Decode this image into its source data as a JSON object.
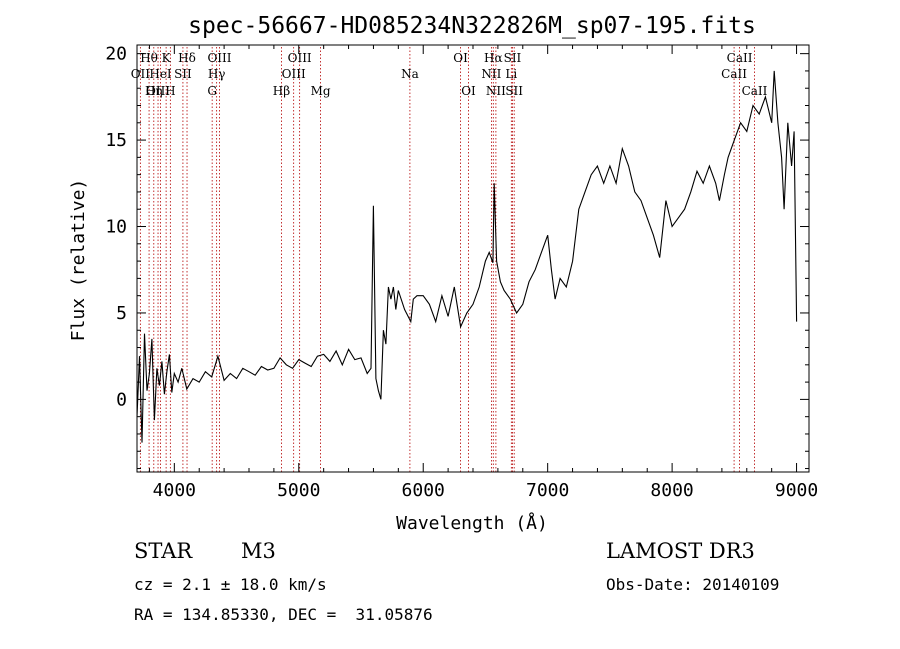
{
  "chart_data": {
    "type": "line",
    "title": "spec-56667-HD085234N322826M_sp07-195.fits",
    "xlabel": "Wavelength (Å)",
    "ylabel": "Flux (relative)",
    "xlim": [
      3700,
      9100
    ],
    "ylim": [
      -4.2,
      20.5
    ],
    "xticks": [
      4000,
      5000,
      6000,
      7000,
      8000,
      9000
    ],
    "yticks": [
      0,
      5,
      10,
      15,
      20
    ],
    "grid": false,
    "series": [
      {
        "color": "#000000",
        "x": [
          3700,
          3720,
          3740,
          3760,
          3780,
          3800,
          3820,
          3840,
          3860,
          3880,
          3900,
          3920,
          3940,
          3960,
          3980,
          4000,
          4030,
          4060,
          4100,
          4150,
          4200,
          4250,
          4300,
          4350,
          4400,
          4450,
          4500,
          4550,
          4600,
          4650,
          4700,
          4750,
          4800,
          4850,
          4900,
          4950,
          5000,
          5050,
          5100,
          5150,
          5200,
          5250,
          5300,
          5350,
          5400,
          5450,
          5500,
          5550,
          5580,
          5600,
          5620,
          5640,
          5660,
          5680,
          5700,
          5720,
          5740,
          5760,
          5780,
          5800,
          5850,
          5900,
          5920,
          5950,
          6000,
          6050,
          6100,
          6150,
          6200,
          6250,
          6300,
          6350,
          6400,
          6450,
          6500,
          6530,
          6560,
          6570,
          6590,
          6620,
          6650,
          6700,
          6750,
          6800,
          6850,
          6900,
          6950,
          7000,
          7030,
          7060,
          7100,
          7150,
          7200,
          7250,
          7300,
          7350,
          7400,
          7450,
          7500,
          7550,
          7600,
          7650,
          7700,
          7750,
          7800,
          7850,
          7900,
          7950,
          8000,
          8050,
          8100,
          8150,
          8200,
          8250,
          8300,
          8350,
          8380,
          8420,
          8450,
          8500,
          8550,
          8600,
          8650,
          8700,
          8750,
          8800,
          8820,
          8850,
          8880,
          8900,
          8930,
          8960,
          8980,
          9000
        ],
        "y": [
          -1.0,
          2.5,
          -2.5,
          3.8,
          0.5,
          1.5,
          3.5,
          -1.2,
          1.8,
          0.8,
          2.2,
          0.3,
          1.6,
          2.6,
          0.4,
          1.5,
          1.0,
          1.8,
          0.6,
          1.2,
          1.0,
          1.6,
          1.3,
          2.5,
          1.1,
          1.5,
          1.2,
          1.8,
          1.6,
          1.4,
          1.9,
          1.7,
          1.8,
          2.4,
          2.0,
          1.8,
          2.3,
          2.1,
          1.9,
          2.5,
          2.6,
          2.2,
          2.8,
          2.0,
          2.9,
          2.3,
          2.4,
          1.5,
          1.8,
          11.2,
          1.2,
          0.5,
          0.0,
          4.0,
          3.2,
          6.5,
          5.8,
          6.5,
          5.2,
          6.3,
          5.2,
          4.5,
          5.8,
          6.0,
          6.0,
          5.5,
          4.5,
          6.0,
          4.8,
          6.5,
          4.2,
          5.0,
          5.5,
          6.5,
          8.0,
          8.5,
          7.9,
          12.5,
          8.0,
          6.8,
          6.3,
          5.8,
          5.0,
          5.5,
          6.8,
          7.5,
          8.5,
          9.5,
          7.5,
          5.8,
          7.0,
          6.5,
          8.0,
          11.0,
          12.0,
          13.0,
          13.5,
          12.5,
          13.5,
          12.5,
          14.5,
          13.5,
          12.0,
          11.5,
          10.5,
          9.5,
          8.2,
          11.5,
          10.0,
          10.5,
          11.0,
          12.0,
          13.2,
          12.5,
          13.5,
          12.5,
          11.5,
          13.0,
          14.0,
          15.0,
          16.0,
          15.5,
          17.0,
          16.5,
          17.5,
          16.0,
          19.0,
          16.0,
          14.0,
          11.0,
          16.0,
          13.5,
          15.5,
          4.5
        ]
      }
    ],
    "lines": [
      {
        "label": "Hθ",
        "x": 3797,
        "row": 1
      },
      {
        "label": "OII",
        "x": 3727,
        "row": 2
      },
      {
        "label": "OIII",
        "x": 3869,
        "row": 3
      },
      {
        "label": "K",
        "x": 3934,
        "row": 1
      },
      {
        "label": "HeI",
        "x": 3889,
        "row": 2
      },
      {
        "label": "Hη",
        "x": 3835,
        "row": 3
      },
      {
        "label": "SII",
        "x": 4069,
        "row": 2
      },
      {
        "label": "H",
        "x": 3968,
        "row": 3
      },
      {
        "label": "Hδ",
        "x": 4102,
        "row": 1
      },
      {
        "label": "OIII",
        "x": 4363,
        "row": 1
      },
      {
        "label": "Hγ",
        "x": 4340,
        "row": 2
      },
      {
        "label": "G",
        "x": 4304,
        "row": 3
      },
      {
        "label": "OIII",
        "x": 5007,
        "row": 1
      },
      {
        "label": "OIII",
        "x": 4959,
        "row": 2
      },
      {
        "label": "Hβ",
        "x": 4861,
        "row": 3
      },
      {
        "label": "Mg",
        "x": 5175,
        "row": 3
      },
      {
        "label": "Na",
        "x": 5893,
        "row": 2
      },
      {
        "label": "OI",
        "x": 6300,
        "row": 1
      },
      {
        "label": "OI",
        "x": 6364,
        "row": 3
      },
      {
        "label": "Hα",
        "x": 6563,
        "row": 1
      },
      {
        "label": "NII",
        "x": 6548,
        "row": 2
      },
      {
        "label": "NII",
        "x": 6584,
        "row": 3
      },
      {
        "label": "SII",
        "x": 6717,
        "row": 1
      },
      {
        "label": "Li",
        "x": 6708,
        "row": 2
      },
      {
        "label": "SII",
        "x": 6731,
        "row": 3
      },
      {
        "label": "CaII",
        "x": 8542,
        "row": 1
      },
      {
        "label": "CaII",
        "x": 8498,
        "row": 2
      },
      {
        "label": "CaII",
        "x": 8662,
        "row": 3
      }
    ]
  },
  "info": {
    "class": "STAR",
    "subclass": "M3",
    "survey": "LAMOST DR3",
    "cz": "cz = 2.1 ± 18.0 km/s",
    "obs_date": "Obs-Date: 20140109",
    "coords": "RA = 134.85330, DEC =  31.05876"
  }
}
